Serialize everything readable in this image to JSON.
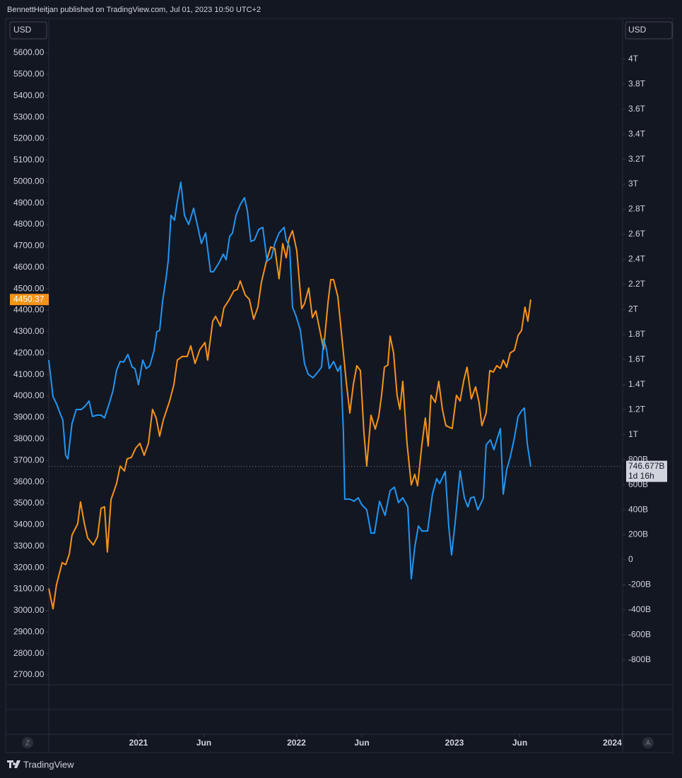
{
  "header": {
    "attribution": "BennettHeitjan published on TradingView.com, Jul 01, 2023 10:50 UTC+2"
  },
  "footer": {
    "brand": "TradingView"
  },
  "buttons": {
    "left": "Z",
    "right": "A"
  },
  "chart_data": {
    "type": "line",
    "ylabel": "USD",
    "y2label": "USD",
    "xlim": [
      2020.432,
      2024.065
    ],
    "xticks": [
      {
        "value": 2021,
        "label": "2021"
      },
      {
        "value": 2021.414,
        "label": "Jun"
      },
      {
        "value": 2022,
        "label": "2022"
      },
      {
        "value": 2022.414,
        "label": "Jun"
      },
      {
        "value": 2023,
        "label": "2023"
      },
      {
        "value": 2023.414,
        "label": "Jun"
      },
      {
        "value": 2024,
        "label": "2024"
      }
    ],
    "ylim": [
      2654,
      5748
    ],
    "yticks": [
      {
        "value": 2700,
        "label": "2700.00"
      },
      {
        "value": 2800,
        "label": "2800.00"
      },
      {
        "value": 2900,
        "label": "2900.00"
      },
      {
        "value": 3000,
        "label": "3000.00"
      },
      {
        "value": 3100,
        "label": "3100.00"
      },
      {
        "value": 3200,
        "label": "3200.00"
      },
      {
        "value": 3300,
        "label": "3300.00"
      },
      {
        "value": 3400,
        "label": "3400.00"
      },
      {
        "value": 3500,
        "label": "3500.00"
      },
      {
        "value": 3600,
        "label": "3600.00"
      },
      {
        "value": 3700,
        "label": "3700.00"
      },
      {
        "value": 3800,
        "label": "3800.00"
      },
      {
        "value": 3900,
        "label": "3900.00"
      },
      {
        "value": 4000,
        "label": "4000.00"
      },
      {
        "value": 4100,
        "label": "4100.00"
      },
      {
        "value": 4200,
        "label": "4200.00"
      },
      {
        "value": 4300,
        "label": "4300.00"
      },
      {
        "value": 4400,
        "label": "4400.00"
      },
      {
        "value": 4500,
        "label": "4500.00"
      },
      {
        "value": 4600,
        "label": "4600.00"
      },
      {
        "value": 4700,
        "label": "4700.00"
      },
      {
        "value": 4800,
        "label": "4800.00"
      },
      {
        "value": 4900,
        "label": "4900.00"
      },
      {
        "value": 5000,
        "label": "5000.00"
      },
      {
        "value": 5100,
        "label": "5100.00"
      },
      {
        "value": 5200,
        "label": "5200.00"
      },
      {
        "value": 5300,
        "label": "5300.00"
      },
      {
        "value": 5400,
        "label": "5400.00"
      },
      {
        "value": 5500,
        "label": "5500.00"
      },
      {
        "value": 5600,
        "label": "5600.00"
      }
    ],
    "y2lim": [
      -998,
      4303
    ],
    "y2ticks": [
      {
        "value": -800,
        "label": "-800B"
      },
      {
        "value": -600,
        "label": "-600B"
      },
      {
        "value": -400,
        "label": "-400B"
      },
      {
        "value": -200,
        "label": "-200B"
      },
      0,
      {
        "value": 200,
        "label": "200B"
      },
      {
        "value": 400,
        "label": "400B"
      },
      {
        "value": 600,
        "label": "600B"
      },
      {
        "value": 800,
        "label": "800B"
      },
      {
        "value": 1000,
        "label": "1T"
      },
      {
        "value": 1200,
        "label": "1.2T"
      },
      {
        "value": 1400,
        "label": "1.4T"
      },
      {
        "value": 1600,
        "label": "1.6T"
      },
      {
        "value": 1800,
        "label": "1.8T"
      },
      {
        "value": 2000,
        "label": "2T"
      },
      {
        "value": 2200,
        "label": "2.2T"
      },
      {
        "value": 2400,
        "label": "2.4T"
      },
      {
        "value": 2600,
        "label": "2.6T"
      },
      {
        "value": 2800,
        "label": "2.8T"
      },
      {
        "value": 3000,
        "label": "3T"
      },
      {
        "value": 3200,
        "label": "3.2T"
      },
      {
        "value": 3400,
        "label": "3.4T"
      },
      {
        "value": 3600,
        "label": "3.6T"
      },
      {
        "value": 3800,
        "label": "3.8T"
      },
      {
        "value": 4000,
        "label": "4T"
      }
    ],
    "series": [
      {
        "color": "#f7931a",
        "axis": "y",
        "x": [
          2020.432,
          2020.459,
          2020.481,
          2020.517,
          2020.539,
          2020.562,
          2020.579,
          2020.615,
          2020.633,
          2020.656,
          2020.678,
          2020.714,
          2020.741,
          2020.763,
          2020.785,
          2020.803,
          2020.826,
          2020.861,
          2020.884,
          2020.911,
          2020.928,
          2020.955,
          2020.982,
          2021.009,
          2021.036,
          2021.063,
          2021.089,
          2021.112,
          2021.134,
          2021.157,
          2021.197,
          2021.224,
          2021.246,
          2021.277,
          2021.309,
          2021.331,
          2021.358,
          2021.389,
          2021.421,
          2021.438,
          2021.47,
          2021.488,
          2021.519,
          2021.541,
          2021.573,
          2021.604,
          2021.626,
          2021.644,
          2021.676,
          2021.702,
          2021.729,
          2021.756,
          2021.778,
          2021.81,
          2021.837,
          2021.863,
          2021.89,
          2021.913,
          2021.935,
          2021.953,
          2021.975,
          2022.002,
          2022.033,
          2022.051,
          2022.078,
          2022.101,
          2022.123,
          2022.15,
          2022.172,
          2022.199,
          2022.217,
          2022.235,
          2022.262,
          2022.293,
          2022.315,
          2022.338,
          2022.36,
          2022.382,
          2022.405,
          2022.427,
          2022.445,
          2022.472,
          2022.499,
          2022.521,
          2022.539,
          2022.557,
          2022.579,
          2022.593,
          2022.615,
          2022.637,
          2022.655,
          2022.673,
          2022.7,
          2022.727,
          2022.749,
          2022.767,
          2022.794,
          2022.816,
          2022.834,
          2022.852,
          2022.879,
          2022.901,
          2022.924,
          2022.946,
          2022.986,
          2023.013,
          2023.036,
          2023.058,
          2023.08,
          2023.107,
          2023.134,
          2023.156,
          2023.174,
          2023.201,
          2023.224,
          2023.246,
          2023.268,
          2023.291,
          2023.309,
          2023.331,
          2023.353,
          2023.38,
          2023.403,
          2023.425,
          2023.447,
          2023.465,
          2023.483
        ],
        "values": [
          3104,
          3008,
          3121,
          3224,
          3214,
          3263,
          3352,
          3404,
          3507,
          3411,
          3339,
          3306,
          3345,
          3477,
          3484,
          3273,
          3517,
          3592,
          3674,
          3651,
          3707,
          3714,
          3757,
          3780,
          3724,
          3780,
          3938,
          3898,
          3813,
          3888,
          3977,
          4053,
          4168,
          4185,
          4185,
          4234,
          4152,
          4218,
          4250,
          4168,
          4349,
          4372,
          4326,
          4412,
          4448,
          4491,
          4497,
          4537,
          4471,
          4451,
          4359,
          4415,
          4530,
          4629,
          4695,
          4688,
          4547,
          4711,
          4645,
          4734,
          4771,
          4678,
          4408,
          4431,
          4504,
          4366,
          4398,
          4300,
          4218,
          4431,
          4543,
          4543,
          4464,
          4234,
          4069,
          3921,
          4053,
          4142,
          4119,
          3832,
          3674,
          3911,
          3846,
          3905,
          4004,
          4135,
          4145,
          4280,
          4201,
          4004,
          3938,
          4069,
          3780,
          3586,
          3635,
          3582,
          3773,
          3898,
          3767,
          4004,
          3971,
          4069,
          3938,
          3862,
          3849,
          4004,
          3977,
          4069,
          4135,
          3987,
          4043,
          3971,
          3862,
          3921,
          4119,
          4112,
          4142,
          4129,
          4168,
          4135,
          4201,
          4214,
          4283,
          4306,
          4415,
          4349,
          4450.37
        ]
      },
      {
        "color": "#2196f3",
        "axis": "y2",
        "x": [
          2020.432,
          2020.459,
          2020.481,
          2020.503,
          2020.521,
          2020.539,
          2020.553,
          2020.579,
          2020.606,
          2020.638,
          2020.664,
          2020.687,
          2020.709,
          2020.736,
          2020.763,
          2020.785,
          2020.817,
          2020.839,
          2020.861,
          2020.884,
          2020.906,
          2020.933,
          2020.96,
          2020.978,
          2021,
          2021.027,
          2021.049,
          2021.072,
          2021.098,
          2021.116,
          2021.134,
          2021.152,
          2021.174,
          2021.188,
          2021.206,
          2021.228,
          2021.246,
          2021.268,
          2021.291,
          2021.318,
          2021.349,
          2021.376,
          2021.398,
          2021.425,
          2021.456,
          2021.474,
          2021.51,
          2021.537,
          2021.555,
          2021.577,
          2021.595,
          2021.617,
          2021.644,
          2021.671,
          2021.689,
          2021.711,
          2021.734,
          2021.761,
          2021.787,
          2021.814,
          2021.841,
          2021.863,
          2021.89,
          2021.922,
          2021.935,
          2021.957,
          2021.975,
          2021.998,
          2022.025,
          2022.051,
          2022.074,
          2022.105,
          2022.132,
          2022.159,
          2022.172,
          2022.19,
          2022.208,
          2022.235,
          2022.262,
          2022.28,
          2022.297,
          2022.306,
          2022.338,
          2022.365,
          2022.391,
          2022.414,
          2022.445,
          2022.472,
          2022.494,
          2022.526,
          2022.561,
          2022.593,
          2022.62,
          2022.646,
          2022.673,
          2022.705,
          2022.727,
          2022.749,
          2022.772,
          2022.794,
          2022.83,
          2022.861,
          2022.888,
          2022.906,
          2022.942,
          2022.964,
          2022.982,
          2023.004,
          2023.036,
          2023.063,
          2023.085,
          2023.103,
          2023.125,
          2023.148,
          2023.17,
          2023.183,
          2023.201,
          2023.228,
          2023.25,
          2023.273,
          2023.291,
          2023.309,
          2023.331,
          2023.353,
          2023.38,
          2023.403,
          2023.425,
          2023.443,
          2023.461,
          2023.483
        ],
        "values": [
          1596,
          1303,
          1246,
          1173,
          1117,
          835,
          806,
          1089,
          1201,
          1201,
          1230,
          1269,
          1145,
          1156,
          1156,
          1134,
          1258,
          1354,
          1512,
          1585,
          1580,
          1641,
          1540,
          1528,
          1399,
          1596,
          1528,
          1551,
          1669,
          1822,
          1833,
          2059,
          2245,
          2386,
          2752,
          2713,
          2865,
          3017,
          2752,
          2679,
          2809,
          2656,
          2527,
          2611,
          2301,
          2301,
          2374,
          2442,
          2397,
          2583,
          2611,
          2752,
          2837,
          2893,
          2792,
          2544,
          2555,
          2639,
          2656,
          2386,
          2414,
          2527,
          2611,
          2656,
          2555,
          2499,
          2019,
          1946,
          1833,
          1568,
          1483,
          1455,
          1495,
          1540,
          1765,
          1681,
          1528,
          1585,
          1506,
          1551,
          1032,
          485,
          485,
          468,
          496,
          440,
          400,
          214,
          214,
          468,
          355,
          553,
          581,
          457,
          496,
          423,
          -152,
          102,
          271,
          231,
          231,
          525,
          649,
          609,
          705,
          271,
          39,
          288,
          711,
          496,
          423,
          496,
          502,
          400,
          457,
          496,
          919,
          959,
          880,
          976,
          1049,
          525,
          722,
          818,
          976,
          1145,
          1190,
          1213,
          931,
          746.677
        ],
        "last_value_label": "746.677B",
        "countdown": "1d 16h"
      }
    ]
  }
}
